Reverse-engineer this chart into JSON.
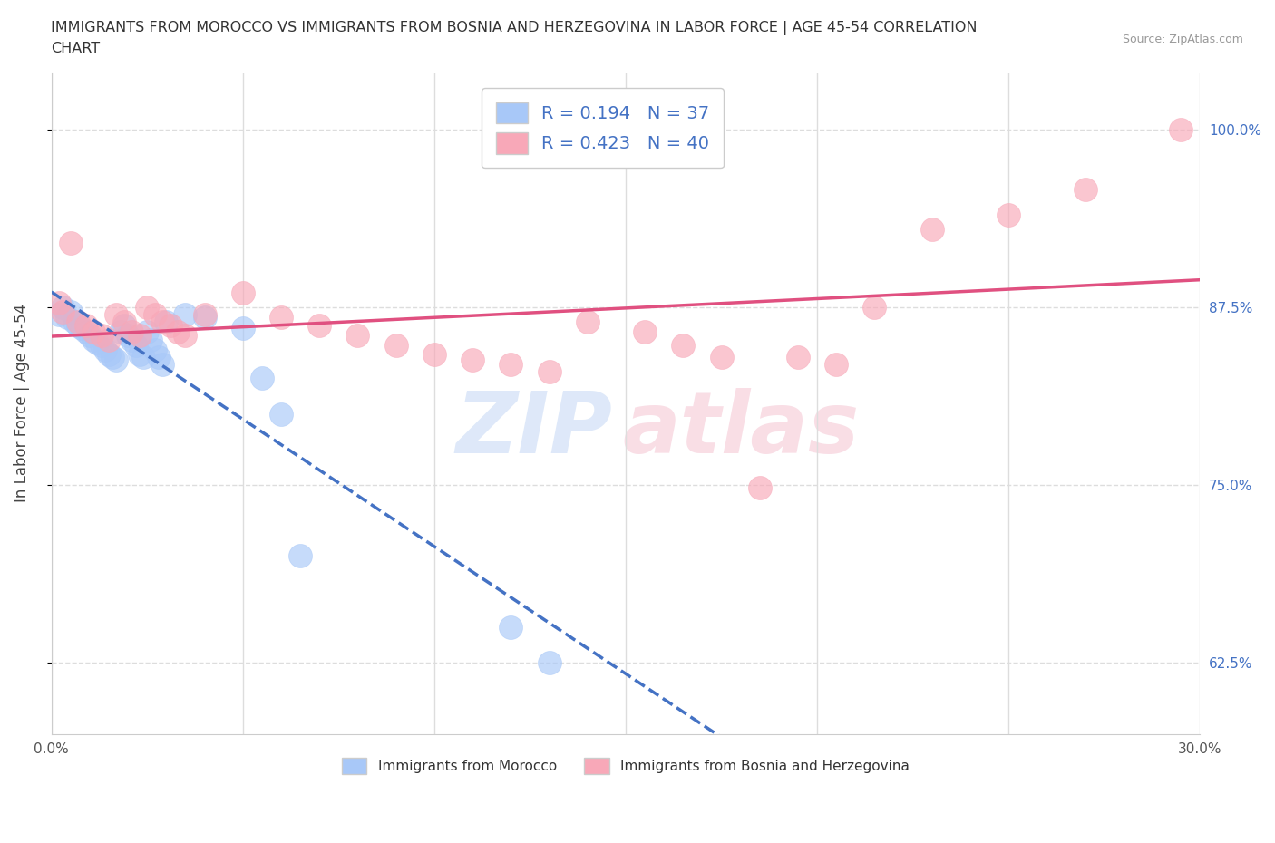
{
  "title_line1": "IMMIGRANTS FROM MOROCCO VS IMMIGRANTS FROM BOSNIA AND HERZEGOVINA IN LABOR FORCE | AGE 45-54 CORRELATION",
  "title_line2": "CHART",
  "source": "Source: ZipAtlas.com",
  "ylabel": "In Labor Force | Age 45-54",
  "xlim": [
    0.0,
    0.3
  ],
  "ylim": [
    0.575,
    1.04
  ],
  "xticks": [
    0.0,
    0.05,
    0.1,
    0.15,
    0.2,
    0.25,
    0.3
  ],
  "xticklabels": [
    "0.0%",
    "",
    "",
    "",
    "",
    "",
    "30.0%"
  ],
  "yticks": [
    0.625,
    0.75,
    0.875,
    1.0
  ],
  "yticklabels": [
    "62.5%",
    "75.0%",
    "87.5%",
    "100.0%"
  ],
  "morocco_R": 0.194,
  "morocco_N": 37,
  "bosnia_R": 0.423,
  "bosnia_N": 40,
  "morocco_color": "#a8c8f8",
  "bosnia_color": "#f8a8b8",
  "morocco_line_color": "#4472c4",
  "bosnia_line_color": "#e05080",
  "background_color": "#ffffff",
  "grid_color": "#dddddd",
  "morocco_scatter_x": [
    0.002,
    0.003,
    0.004,
    0.005,
    0.006,
    0.007,
    0.008,
    0.009,
    0.01,
    0.011,
    0.012,
    0.013,
    0.014,
    0.015,
    0.016,
    0.017,
    0.018,
    0.019,
    0.02,
    0.021,
    0.022,
    0.023,
    0.024,
    0.025,
    0.026,
    0.027,
    0.028,
    0.029,
    0.03,
    0.035,
    0.04,
    0.05,
    0.055,
    0.06,
    0.065,
    0.12,
    0.13
  ],
  "morocco_scatter_y": [
    0.87,
    0.875,
    0.868,
    0.872,
    0.865,
    0.862,
    0.86,
    0.858,
    0.855,
    0.852,
    0.85,
    0.848,
    0.845,
    0.842,
    0.84,
    0.838,
    0.858,
    0.862,
    0.855,
    0.852,
    0.848,
    0.842,
    0.84,
    0.858,
    0.852,
    0.845,
    0.84,
    0.835,
    0.865,
    0.87,
    0.868,
    0.86,
    0.825,
    0.8,
    0.7,
    0.65,
    0.625
  ],
  "bosnia_scatter_x": [
    0.002,
    0.003,
    0.005,
    0.007,
    0.009,
    0.011,
    0.013,
    0.015,
    0.017,
    0.019,
    0.021,
    0.023,
    0.025,
    0.027,
    0.029,
    0.031,
    0.033,
    0.035,
    0.04,
    0.05,
    0.06,
    0.07,
    0.08,
    0.09,
    0.1,
    0.11,
    0.12,
    0.13,
    0.14,
    0.155,
    0.165,
    0.175,
    0.185,
    0.195,
    0.205,
    0.215,
    0.23,
    0.25,
    0.27,
    0.295
  ],
  "bosnia_scatter_y": [
    0.878,
    0.872,
    0.92,
    0.865,
    0.862,
    0.858,
    0.855,
    0.852,
    0.87,
    0.865,
    0.858,
    0.855,
    0.875,
    0.87,
    0.865,
    0.862,
    0.858,
    0.855,
    0.87,
    0.885,
    0.868,
    0.862,
    0.855,
    0.848,
    0.842,
    0.838,
    0.835,
    0.83,
    0.865,
    0.858,
    0.848,
    0.84,
    0.748,
    0.84,
    0.835,
    0.875,
    0.93,
    0.94,
    0.958,
    1.0
  ]
}
